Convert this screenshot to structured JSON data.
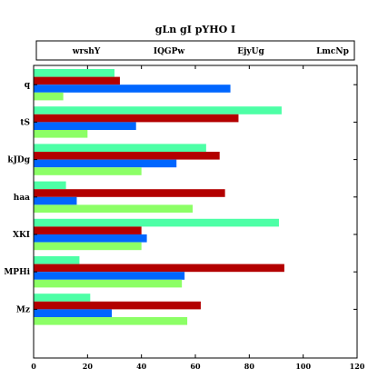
{
  "chart_data": {
    "type": "bar",
    "orientation": "horizontal",
    "title": "gLn gI  pYHO I",
    "xlabel": "",
    "ylabel": "",
    "xlim": [
      0,
      120
    ],
    "xticks": [
      0,
      20,
      40,
      60,
      80,
      100,
      120
    ],
    "grid": false,
    "legend_position": "top",
    "categories": [
      "q",
      "tS",
      "kJDg",
      "haa",
      "XKI",
      "MPHi",
      "Mz"
    ],
    "series": [
      {
        "name": "wrshY",
        "color": "#4dffa6",
        "values": [
          30,
          92,
          64,
          12,
          91,
          17,
          21
        ]
      },
      {
        "name": "IQGPw",
        "color": "#b30000",
        "values": [
          32,
          76,
          69,
          71,
          40,
          93,
          62
        ]
      },
      {
        "name": "EjyUg",
        "color": "#0066ff",
        "values": [
          73,
          38,
          53,
          16,
          42,
          56,
          29
        ]
      },
      {
        "name": "LmcNp",
        "color": "#8cff66",
        "values": [
          11,
          20,
          40,
          59,
          40,
          55,
          57
        ]
      }
    ]
  }
}
